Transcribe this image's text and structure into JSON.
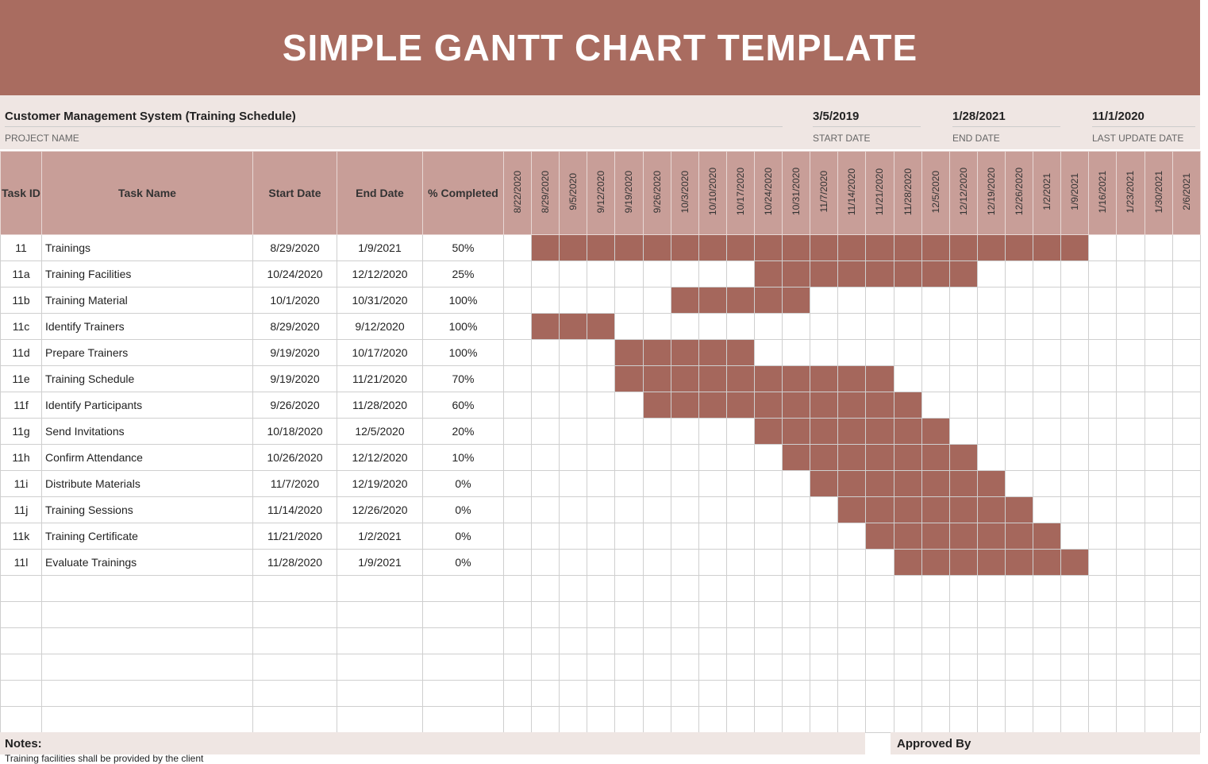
{
  "title": "SIMPLE GANTT CHART TEMPLATE",
  "project": {
    "name": "Customer Management System (Training Schedule)",
    "name_label": "PROJECT NAME",
    "start_date": "3/5/2019",
    "start_label": "START DATE",
    "end_date": "1/28/2021",
    "end_label": "END DATE",
    "last_update": "11/1/2020",
    "last_update_label": "LAST UPDATE DATE"
  },
  "columns": {
    "id": "Task ID",
    "name": "Task Name",
    "start": "Start Date",
    "end": "End Date",
    "pct": "% Completed"
  },
  "weeks": [
    "8/22/2020",
    "8/29/2020",
    "9/5/2020",
    "9/12/2020",
    "9/19/2020",
    "9/26/2020",
    "10/3/2020",
    "10/10/2020",
    "10/17/2020",
    "10/24/2020",
    "10/31/2020",
    "11/7/2020",
    "11/14/2020",
    "11/21/2020",
    "11/28/2020",
    "12/5/2020",
    "12/12/2020",
    "12/19/2020",
    "12/26/2020",
    "1/2/2021",
    "1/9/2021",
    "1/16/2021",
    "1/23/2021",
    "1/30/2021",
    "2/6/2021"
  ],
  "tasks": [
    {
      "id": "11",
      "name": "Trainings",
      "start": "8/29/2020",
      "end": "1/9/2021",
      "pct": "50%"
    },
    {
      "id": "11a",
      "name": "Training Facilities",
      "start": "10/24/2020",
      "end": "12/12/2020",
      "pct": "25%"
    },
    {
      "id": "11b",
      "name": "Training Material",
      "start": "10/1/2020",
      "end": "10/31/2020",
      "pct": "100%"
    },
    {
      "id": "11c",
      "name": "Identify Trainers",
      "start": "8/29/2020",
      "end": "9/12/2020",
      "pct": "100%"
    },
    {
      "id": "11d",
      "name": "Prepare Trainers",
      "start": "9/19/2020",
      "end": "10/17/2020",
      "pct": "100%"
    },
    {
      "id": "11e",
      "name": "Training Schedule",
      "start": "9/19/2020",
      "end": "11/21/2020",
      "pct": "70%"
    },
    {
      "id": "11f",
      "name": "Identify Participants",
      "start": "9/26/2020",
      "end": "11/28/2020",
      "pct": "60%"
    },
    {
      "id": "11g",
      "name": "Send Invitations",
      "start": "10/18/2020",
      "end": "12/5/2020",
      "pct": "20%"
    },
    {
      "id": "11h",
      "name": "Confirm Attendance",
      "start": "10/26/2020",
      "end": "12/12/2020",
      "pct": "10%"
    },
    {
      "id": "11i",
      "name": "Distribute Materials",
      "start": "11/7/2020",
      "end": "12/19/2020",
      "pct": "0%"
    },
    {
      "id": "11j",
      "name": "Training Sessions",
      "start": "11/14/2020",
      "end": "12/26/2020",
      "pct": "0%"
    },
    {
      "id": "11k",
      "name": "Training Certificate",
      "start": "11/21/2020",
      "end": "1/2/2021",
      "pct": "0%"
    },
    {
      "id": "11l",
      "name": "Evaluate Trainings",
      "start": "11/28/2020",
      "end": "1/9/2021",
      "pct": "0%"
    }
  ],
  "colors": {
    "header": "#a96c60",
    "bar": "#a5675c",
    "table_header": "#c89e98"
  },
  "notes_label": "Notes:",
  "note_text": "Training facilities shall be provided by the client",
  "approved_label": "Approved By"
}
